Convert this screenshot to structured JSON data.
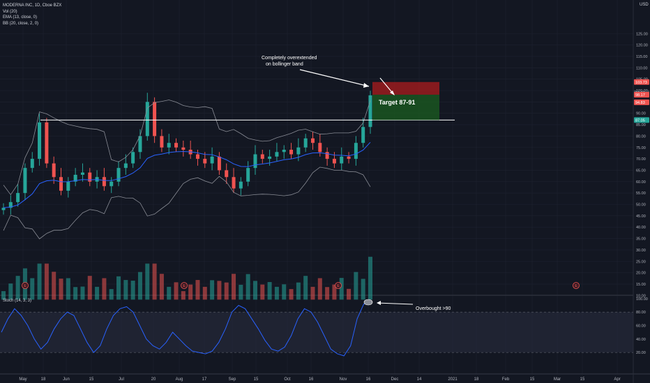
{
  "legend": {
    "symbol": "MODERNA INC, 1D, Cboe BZX",
    "vol": "Vol (20)",
    "ema": "EMA (13, close, 0)",
    "bb": "BB (20, close, 2, 0)",
    "stoch": "Stoch (14, 3, 3)",
    "currency": "USD"
  },
  "colors": {
    "background": "#131722",
    "grid": "#1e2230",
    "text": "#b2b5be",
    "up": "#26a69a",
    "down": "#ef5350",
    "ema": "#2962ff",
    "bollinger": "#8a8d96",
    "stoch": "#2962ff",
    "target_zone": "#1b5e20",
    "stop_zone": "#b71c1c",
    "horizontal_line": "#ffffff"
  },
  "price_axis": {
    "ticks": [
      "125.00",
      "120.00",
      "115.00",
      "110.00",
      "105.00",
      "100.00",
      "95.00",
      "90.00",
      "85.00",
      "80.00",
      "75.00",
      "70.00",
      "65.00",
      "60.00",
      "55.00",
      "50.00",
      "45.00",
      "40.00",
      "35.00",
      "30.00",
      "25.00",
      "20.00",
      "15.00",
      "10.00"
    ],
    "badges": [
      {
        "label": "103.73",
        "value": 103.73,
        "color": "#ef5350"
      },
      {
        "label": "98.86",
        "value": 98.86,
        "color": "#4a4e5a"
      },
      {
        "label": "98.17",
        "value": 98.17,
        "color": "#ef5350"
      },
      {
        "label": "94.83",
        "value": 94.83,
        "color": "#ef5350"
      },
      {
        "label": "87.05",
        "value": 87.05,
        "color": "#26a69a"
      }
    ]
  },
  "stoch_axis": {
    "ticks": [
      "100.00",
      "80.00",
      "60.00",
      "40.00",
      "20.00"
    ]
  },
  "time_axis": {
    "ticks": [
      "May",
      "18",
      "Jun",
      "15",
      "Jul",
      "20",
      "Aug",
      "17",
      "Sep",
      "15",
      "Oct",
      "16",
      "Nov",
      "16",
      "Dec",
      "14",
      "2021",
      "18",
      "Feb",
      "15",
      "Mar",
      "15",
      "Apr"
    ]
  },
  "annotations": {
    "overextended": "Completely overextended\non bollinger band",
    "target": "Target 87-91",
    "overbought": "Overbought >90",
    "earnings_marker": "E"
  },
  "chart_data": {
    "type": "candlestick",
    "title": "MODERNA INC, 1D, Cboe BZX",
    "y_range": [
      5,
      127
    ],
    "stoch_range": [
      0,
      100
    ],
    "horizontal_line": 87.05,
    "position_tool": {
      "entry": 98.17,
      "stop": 103.73,
      "target": 87.05
    },
    "stoch_bands": [
      20,
      80
    ],
    "dates": [
      "May",
      "18",
      "Jun",
      "15",
      "Jul",
      "20",
      "Aug",
      "17",
      "Sep",
      "15",
      "Oct",
      "16",
      "Nov",
      "16"
    ],
    "close": [
      48.5,
      51,
      55,
      66,
      70,
      86,
      68,
      62,
      56,
      60,
      63,
      64,
      60,
      62,
      58,
      60,
      66,
      68,
      73,
      80,
      95,
      80,
      75,
      77,
      75,
      74,
      72,
      70,
      68,
      71,
      65,
      62,
      57,
      60,
      66,
      72,
      70,
      71,
      73,
      74,
      72,
      75,
      79,
      77,
      73,
      70,
      68,
      71,
      70,
      77,
      84,
      97.9
    ],
    "volume_peak": 27,
    "stoch": [
      50,
      70,
      85,
      75,
      60,
      40,
      25,
      35,
      55,
      70,
      80,
      75,
      55,
      35,
      20,
      30,
      55,
      75,
      85,
      88,
      80,
      60,
      40,
      30,
      25,
      35,
      50,
      40,
      30,
      22,
      20,
      18,
      22,
      35,
      55,
      80,
      90,
      85,
      70,
      55,
      38,
      25,
      22,
      28,
      45,
      70,
      85,
      80,
      65,
      45,
      25,
      18,
      15,
      30,
      70,
      92,
      95
    ]
  }
}
